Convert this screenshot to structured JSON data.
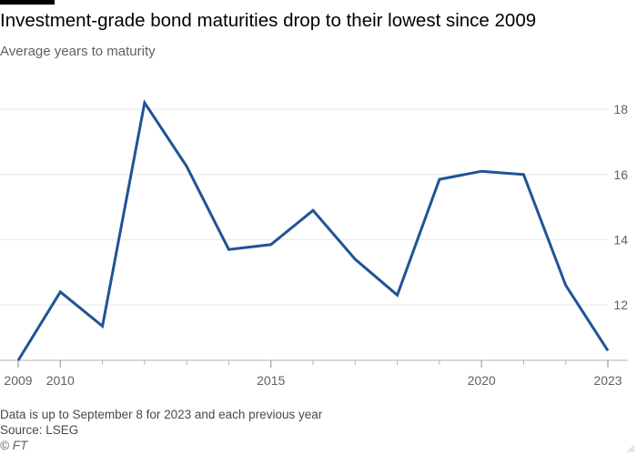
{
  "title": "Investment-grade bond maturities drop to their lowest since 2009",
  "subtitle": "Average years to maturity",
  "footer": {
    "note": "Data is up to September 8 for 2023 and each previous year",
    "source": "Source: LSEG",
    "copyright": "© FT"
  },
  "colors": {
    "line": "#1f5496",
    "grid": "#e8e8e8",
    "axis": "#66605c",
    "text": "#33302e"
  },
  "chart_data": {
    "type": "line",
    "title": "Investment-grade bond maturities drop to their lowest since 2009",
    "subtitle": "Average years to maturity",
    "x": [
      2009,
      2010,
      2011,
      2012,
      2013,
      2014,
      2015,
      2016,
      2017,
      2018,
      2019,
      2020,
      2021,
      2022,
      2023
    ],
    "series": [
      {
        "values": [
          10.3,
          12.4,
          11.35,
          18.2,
          16.25,
          13.7,
          13.85,
          14.9,
          13.4,
          12.3,
          15.85,
          16.1,
          16.0,
          12.6,
          10.6
        ]
      }
    ],
    "x_tick_labels": [
      "2009",
      "2010",
      "2015",
      "2020",
      "2023"
    ],
    "x_ticks": [
      2009,
      2010,
      2015,
      2020,
      2023
    ],
    "x_minor_ticks": [
      2011,
      2012,
      2013,
      2014,
      2016,
      2017,
      2018,
      2019,
      2021,
      2022
    ],
    "y_ticks": [
      12,
      14,
      16,
      18
    ],
    "y_tick_labels": [
      "12",
      "14",
      "16",
      "18"
    ],
    "xlim": [
      2009,
      2023
    ],
    "ylim": [
      10.3,
      18.7
    ],
    "y_axis_side": "right",
    "grid": true,
    "xlabel": "",
    "ylabel": ""
  }
}
